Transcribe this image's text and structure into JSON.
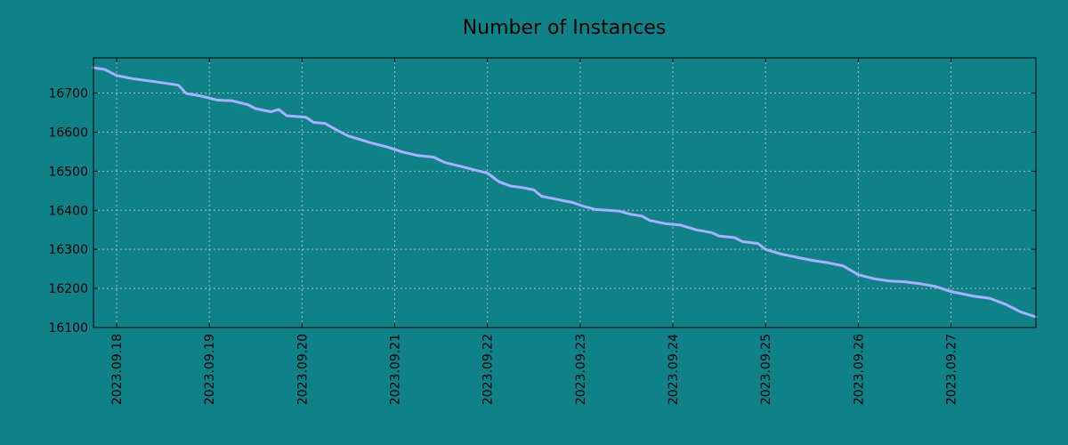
{
  "chart_data": {
    "type": "line",
    "title": "Number of Instances",
    "xlabel": "",
    "ylabel": "",
    "grid": true,
    "legend": "none",
    "x_range": [
      "2023.09.17 18:00",
      "2023.09.27 22:00"
    ],
    "ylim": [
      16100,
      16790
    ],
    "y_ticks": [
      16100,
      16200,
      16300,
      16400,
      16500,
      16600,
      16700
    ],
    "x_ticks": [
      "2023.09.18",
      "2023.09.19",
      "2023.09.20",
      "2023.09.21",
      "2023.09.22",
      "2023.09.23",
      "2023.09.24",
      "2023.09.25",
      "2023.09.26",
      "2023.09.27"
    ],
    "colors": {
      "background": "#0f8287",
      "line": "#a8b0ff",
      "axis": "#000000"
    },
    "series": [
      {
        "values": [
          {
            "x": "2023.09.17 18:00",
            "y": 16765
          },
          {
            "x": "2023.09.17 21:00",
            "y": 16760
          },
          {
            "x": "2023.09.18 00:00",
            "y": 16745
          },
          {
            "x": "2023.09.18 04:00",
            "y": 16737
          },
          {
            "x": "2023.09.18 10:00",
            "y": 16729
          },
          {
            "x": "2023.09.18 16:00",
            "y": 16720
          },
          {
            "x": "2023.09.18 18:00",
            "y": 16699
          },
          {
            "x": "2023.09.18 22:00",
            "y": 16692
          },
          {
            "x": "2023.09.19 02:00",
            "y": 16682
          },
          {
            "x": "2023.09.19 06:00",
            "y": 16680
          },
          {
            "x": "2023.09.19 10:00",
            "y": 16670
          },
          {
            "x": "2023.09.19 12:00",
            "y": 16660
          },
          {
            "x": "2023.09.19 16:00",
            "y": 16652
          },
          {
            "x": "2023.09.19 18:00",
            "y": 16658
          },
          {
            "x": "2023.09.19 20:00",
            "y": 16642
          },
          {
            "x": "2023.09.20 01:00",
            "y": 16638
          },
          {
            "x": "2023.09.20 03:00",
            "y": 16625
          },
          {
            "x": "2023.09.20 06:00",
            "y": 16622
          },
          {
            "x": "2023.09.20 09:00",
            "y": 16605
          },
          {
            "x": "2023.09.20 12:00",
            "y": 16590
          },
          {
            "x": "2023.09.20 18:00",
            "y": 16572
          },
          {
            "x": "2023.09.20 22:00",
            "y": 16562
          },
          {
            "x": "2023.09.21 02:00",
            "y": 16549
          },
          {
            "x": "2023.09.21 06:00",
            "y": 16540
          },
          {
            "x": "2023.09.21 10:00",
            "y": 16536
          },
          {
            "x": "2023.09.21 13:00",
            "y": 16522
          },
          {
            "x": "2023.09.21 16:00",
            "y": 16515
          },
          {
            "x": "2023.09.21 22:00",
            "y": 16500
          },
          {
            "x": "2023.09.22 00:00",
            "y": 16495
          },
          {
            "x": "2023.09.22 03:00",
            "y": 16473
          },
          {
            "x": "2023.09.22 06:00",
            "y": 16462
          },
          {
            "x": "2023.09.22 09:00",
            "y": 16458
          },
          {
            "x": "2023.09.22 12:00",
            "y": 16452
          },
          {
            "x": "2023.09.22 14:00",
            "y": 16436
          },
          {
            "x": "2023.09.22 18:00",
            "y": 16428
          },
          {
            "x": "2023.09.22 22:00",
            "y": 16420
          },
          {
            "x": "2023.09.23 01:00",
            "y": 16410
          },
          {
            "x": "2023.09.23 04:00",
            "y": 16402
          },
          {
            "x": "2023.09.23 10:00",
            "y": 16398
          },
          {
            "x": "2023.09.23 13:00",
            "y": 16390
          },
          {
            "x": "2023.09.23 16:00",
            "y": 16385
          },
          {
            "x": "2023.09.23 18:00",
            "y": 16374
          },
          {
            "x": "2023.09.23 22:00",
            "y": 16366
          },
          {
            "x": "2023.09.24 02:00",
            "y": 16362
          },
          {
            "x": "2023.09.24 06:00",
            "y": 16350
          },
          {
            "x": "2023.09.24 10:00",
            "y": 16343
          },
          {
            "x": "2023.09.24 12:00",
            "y": 16334
          },
          {
            "x": "2023.09.24 16:00",
            "y": 16330
          },
          {
            "x": "2023.09.24 18:00",
            "y": 16320
          },
          {
            "x": "2023.09.24 22:00",
            "y": 16315
          },
          {
            "x": "2023.09.25 00:00",
            "y": 16300
          },
          {
            "x": "2023.09.25 04:00",
            "y": 16288
          },
          {
            "x": "2023.09.25 08:00",
            "y": 16280
          },
          {
            "x": "2023.09.25 12:00",
            "y": 16272
          },
          {
            "x": "2023.09.25 16:00",
            "y": 16266
          },
          {
            "x": "2023.09.25 20:00",
            "y": 16258
          },
          {
            "x": "2023.09.26 00:00",
            "y": 16235
          },
          {
            "x": "2023.09.26 04:00",
            "y": 16225
          },
          {
            "x": "2023.09.26 08:00",
            "y": 16219
          },
          {
            "x": "2023.09.26 12:00",
            "y": 16217
          },
          {
            "x": "2023.09.26 16:00",
            "y": 16212
          },
          {
            "x": "2023.09.26 20:00",
            "y": 16205
          },
          {
            "x": "2023.09.27 00:00",
            "y": 16192
          },
          {
            "x": "2023.09.27 06:00",
            "y": 16180
          },
          {
            "x": "2023.09.27 10:00",
            "y": 16175
          },
          {
            "x": "2023.09.27 14:00",
            "y": 16160
          },
          {
            "x": "2023.09.27 18:00",
            "y": 16140
          },
          {
            "x": "2023.09.27 22:00",
            "y": 16127
          }
        ]
      }
    ]
  }
}
